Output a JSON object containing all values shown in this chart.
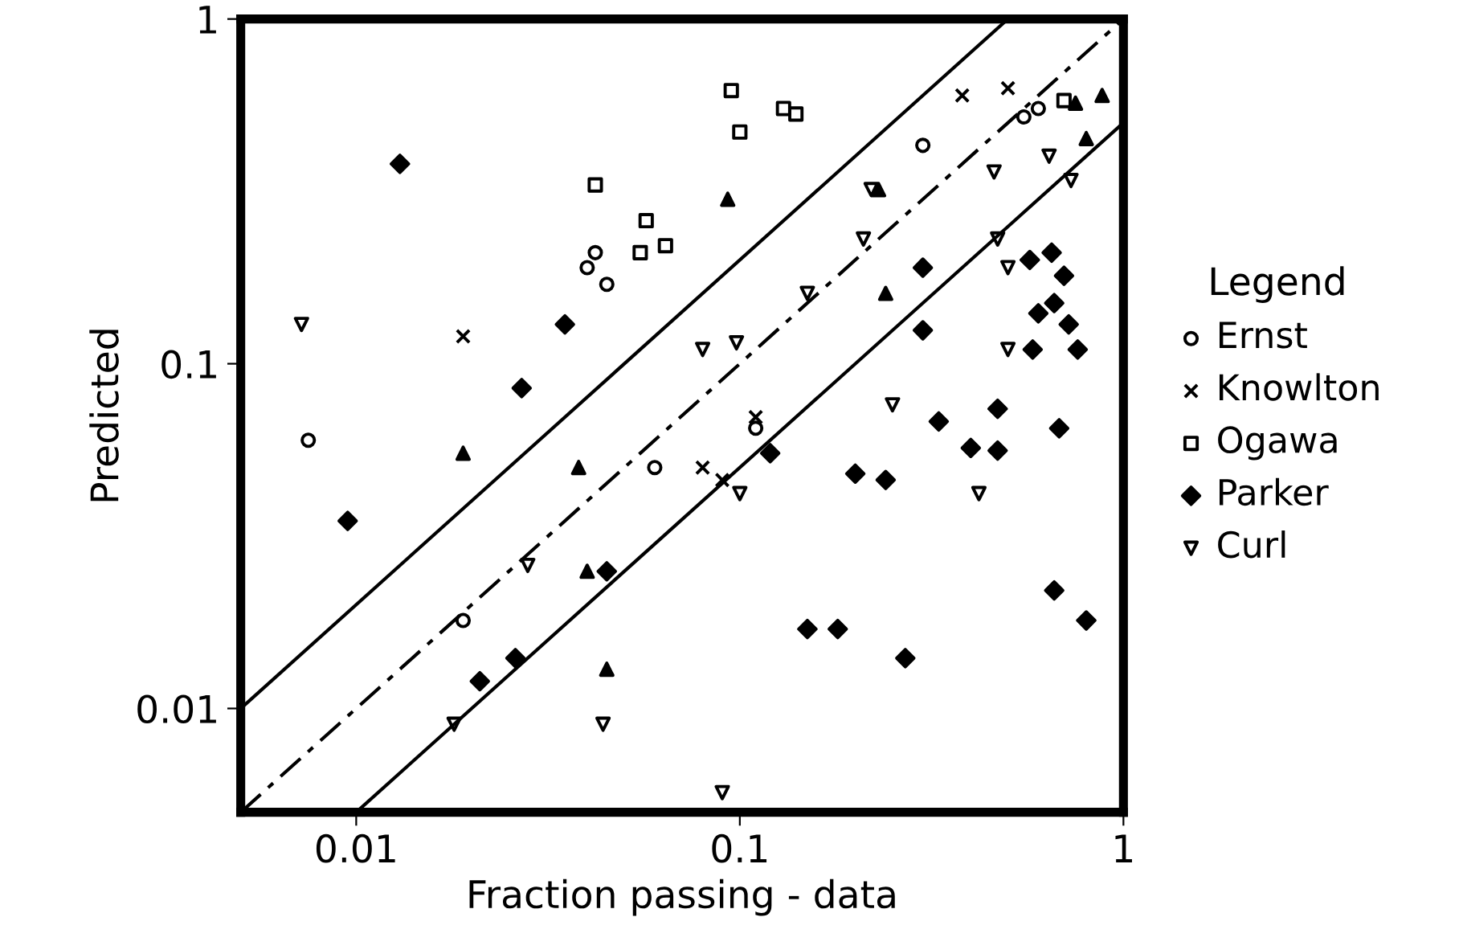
{
  "chart_data": {
    "type": "scatter",
    "xlabel": "Fraction passing - data",
    "ylabel": "Predicted",
    "legend_title": "Legend",
    "legend": "right",
    "log": "xy",
    "grid": false,
    "xlim": [
      0.005,
      1
    ],
    "ylim": [
      0.005,
      1
    ],
    "xticks": [
      0.01,
      0.1,
      1
    ],
    "yticks": [
      0.01,
      0.1,
      1
    ],
    "series": [
      {
        "name": "Ernst",
        "color": "#000000",
        "marker": "circle",
        "x": [
          0.3,
          0.55,
          0.04,
          0.042,
          0.045,
          0.0075,
          0.019,
          0.6,
          0.11,
          0.06
        ],
        "values": [
          0.43,
          0.52,
          0.19,
          0.21,
          0.17,
          0.06,
          0.018,
          0.55,
          0.065,
          0.05
        ]
      },
      {
        "name": "Knowlton",
        "color": "#000000",
        "marker": "cross",
        "x": [
          0.019,
          0.38,
          0.08,
          0.11,
          0.09,
          0.5
        ],
        "values": [
          0.12,
          0.6,
          0.05,
          0.07,
          0.046,
          0.63
        ]
      },
      {
        "name": "Ogawa",
        "color": "#000000",
        "marker": "square",
        "x": [
          0.095,
          0.1,
          0.13,
          0.14,
          0.042,
          0.055,
          0.057,
          0.064,
          0.7
        ],
        "values": [
          0.62,
          0.47,
          0.55,
          0.53,
          0.33,
          0.21,
          0.26,
          0.22,
          0.58
        ]
      },
      {
        "name": "Parker",
        "color": "#000000",
        "marker": "diamond",
        "x": [
          0.013,
          0.035,
          0.027,
          0.3,
          0.65,
          0.57,
          0.7,
          0.66,
          0.6,
          0.72,
          0.3,
          0.58,
          0.76,
          0.33,
          0.47,
          0.68,
          0.47,
          0.4,
          0.18,
          0.15,
          0.2,
          0.045,
          0.026,
          0.021,
          0.0095,
          0.24,
          0.27,
          0.12,
          0.8,
          0.66
        ],
        "values": [
          0.38,
          0.13,
          0.085,
          0.19,
          0.21,
          0.2,
          0.18,
          0.15,
          0.14,
          0.13,
          0.125,
          0.11,
          0.11,
          0.068,
          0.074,
          0.065,
          0.056,
          0.057,
          0.017,
          0.017,
          0.048,
          0.025,
          0.014,
          0.012,
          0.035,
          0.046,
          0.014,
          0.055,
          0.018,
          0.022
        ]
      },
      {
        "color": "#000000",
        "marker": "triangle",
        "x": [
          0.093,
          0.23,
          0.24,
          0.75,
          0.88,
          0.8,
          0.038,
          0.019,
          0.045,
          0.04
        ],
        "values": [
          0.3,
          0.32,
          0.16,
          0.57,
          0.6,
          0.45,
          0.05,
          0.055,
          0.013,
          0.025
        ]
      },
      {
        "name": "Curl",
        "color": "#000000",
        "marker": "triangle_down",
        "x": [
          0.0072,
          0.098,
          0.21,
          0.15,
          0.25,
          0.1,
          0.42,
          0.47,
          0.5,
          0.5,
          0.08,
          0.22,
          0.64,
          0.73,
          0.46,
          0.028,
          0.018,
          0.044,
          0.09
        ],
        "values": [
          0.13,
          0.115,
          0.23,
          0.16,
          0.076,
          0.042,
          0.042,
          0.23,
          0.19,
          0.11,
          0.11,
          0.32,
          0.4,
          0.34,
          0.36,
          0.026,
          0.009,
          0.009,
          0.0057
        ]
      },
      {
        "type": "line",
        "color": "#000000",
        "line_style": "solid",
        "marker": "none",
        "x": [
          0.005,
          0.5
        ],
        "values": [
          0.01,
          1
        ]
      },
      {
        "type": "line",
        "color": "#000000",
        "line_style": "dashed",
        "marker": "none",
        "x": [
          0.005,
          1
        ],
        "values": [
          0.005,
          1
        ]
      },
      {
        "type": "line",
        "color": "#000000",
        "line_style": "solid",
        "marker": "none",
        "x": [
          0.01,
          1
        ],
        "values": [
          0.005,
          0.5
        ]
      }
    ]
  }
}
